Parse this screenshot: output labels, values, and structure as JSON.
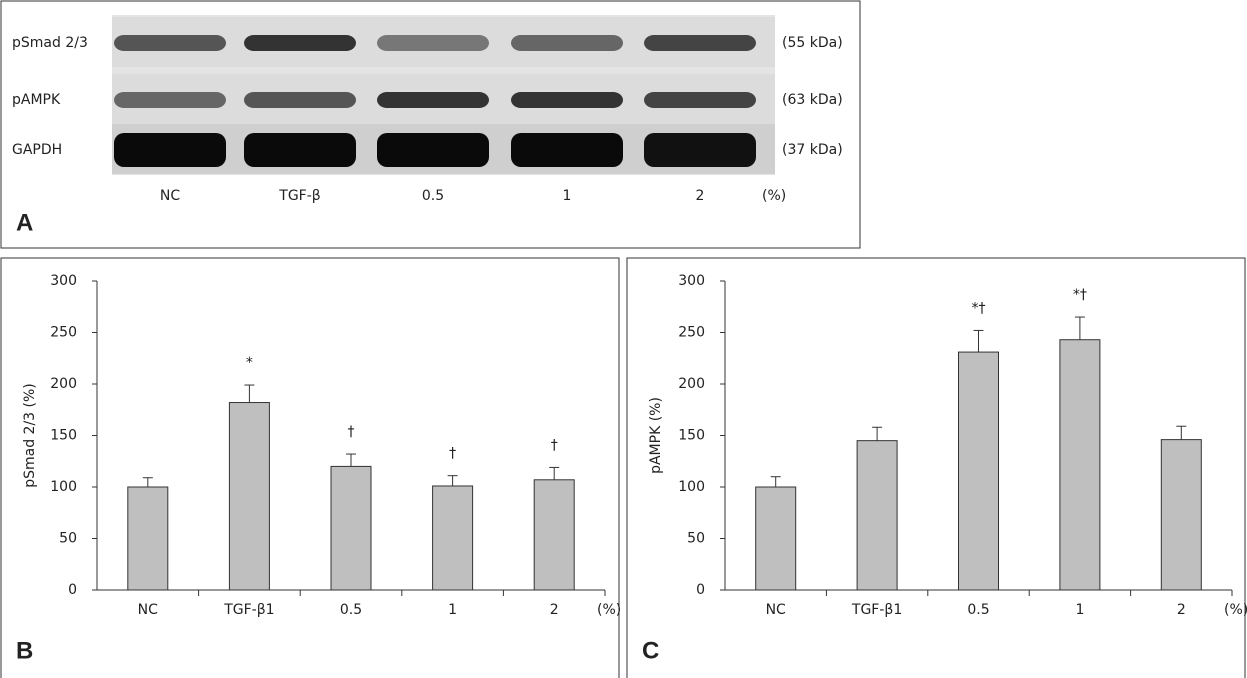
{
  "blot": {
    "panel_label": "A",
    "rows": [
      {
        "protein": "pSmad 2/3",
        "size": "(55 kDa)"
      },
      {
        "protein": "pAMPK",
        "size": "(63 kDa)"
      },
      {
        "protein": "GAPDH",
        "size": "(37 kDa)"
      }
    ],
    "lanes": [
      "NC",
      "TGF-β",
      "0.5",
      "1",
      "2"
    ],
    "unit": "(%)"
  },
  "chart_data": [
    {
      "type": "bar",
      "panel_label": "B",
      "y_label": "pSmad 2/3 (%)",
      "x_unit": "(%)",
      "categories": [
        "NC",
        "TGF-β1",
        "0.5",
        "1",
        "2"
      ],
      "values": [
        100,
        182,
        120,
        101,
        107
      ],
      "errors": [
        9,
        17,
        12,
        10,
        12
      ],
      "annotations": [
        null,
        "*",
        "†",
        "†",
        "†"
      ],
      "color": "#bfbfbf",
      "ylim": [
        0,
        300
      ],
      "yticks": [
        0,
        50,
        100,
        150,
        200,
        250,
        300
      ]
    },
    {
      "type": "bar",
      "panel_label": "C",
      "y_label": "pAMPK (%)",
      "x_unit": "(%)",
      "categories": [
        "NC",
        "TGF-β1",
        "0.5",
        "1",
        "2"
      ],
      "values": [
        100,
        145,
        231,
        243,
        146
      ],
      "errors": [
        10,
        13,
        21,
        22,
        13
      ],
      "annotations": [
        null,
        null,
        "*†",
        "*†",
        null
      ],
      "color": "#bfbfbf",
      "ylim": [
        0,
        300
      ],
      "yticks": [
        0,
        50,
        100,
        150,
        200,
        250,
        300
      ]
    }
  ]
}
